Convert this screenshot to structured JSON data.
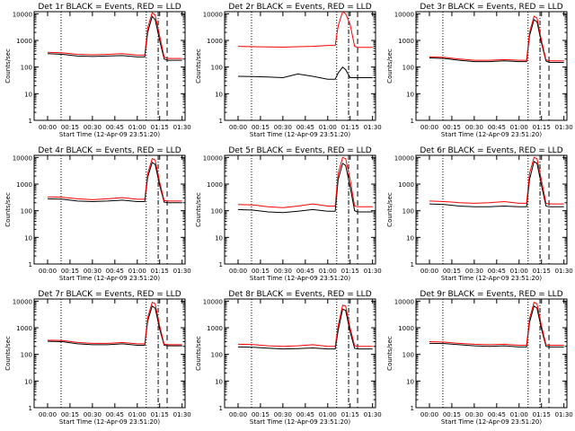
{
  "x_ticks": [
    "00:00",
    "00:15",
    "00:30",
    "00:45",
    "01:00",
    "01:15",
    "01:30"
  ],
  "y_ticks": [
    "1",
    "10",
    "100",
    "1000",
    "10000"
  ],
  "colors": {
    "events": "#000000",
    "lld": "#ff0000"
  },
  "chart_data": [
    {
      "type": "line",
      "title": "Det 1r BLACK = Events, RED = LLD",
      "xlabel": "Start Time (12-Apr-09 23:51:20)",
      "ylabel": "Counts/sec",
      "yscale": "log",
      "ylim": [
        1,
        12000
      ],
      "xlim_minutes": [
        -9,
        92
      ],
      "vlines_dotted_minutes": [
        9,
        66
      ],
      "vlines_dashdot_minutes": [
        74
      ],
      "vlines_dashed_minutes": [
        80
      ],
      "series": [
        {
          "name": "Events",
          "x": [
            0,
            10,
            20,
            30,
            40,
            50,
            60,
            65,
            67,
            70,
            72,
            75,
            78,
            80,
            90
          ],
          "y": [
            320,
            300,
            260,
            250,
            260,
            270,
            240,
            240,
            2000,
            8000,
            6000,
            1000,
            200,
            180,
            180
          ]
        },
        {
          "name": "LLD",
          "x": [
            0,
            10,
            20,
            30,
            40,
            50,
            60,
            65,
            67,
            70,
            72,
            75,
            78,
            80,
            90
          ],
          "y": [
            360,
            340,
            300,
            290,
            300,
            320,
            280,
            280,
            3000,
            11000,
            9000,
            1500,
            240,
            210,
            210
          ]
        }
      ]
    },
    {
      "type": "line",
      "title": "Det 2r BLACK = Events, RED = LLD",
      "xlabel": "Start Time (12-Apr-09 23:51:20)",
      "ylabel": "Counts/sec",
      "yscale": "log",
      "ylim": [
        1,
        12000
      ],
      "xlim_minutes": [
        -9,
        92
      ],
      "vlines_dotted_minutes": [
        9,
        66
      ],
      "vlines_dashdot_minutes": [
        74
      ],
      "vlines_dashed_minutes": [
        80
      ],
      "series": [
        {
          "name": "Events",
          "x": [
            0,
            10,
            20,
            30,
            40,
            50,
            60,
            65,
            67,
            70,
            72,
            75,
            78,
            80,
            90
          ],
          "y": [
            45,
            44,
            42,
            40,
            55,
            45,
            35,
            35,
            60,
            100,
            80,
            40,
            40,
            40,
            40
          ]
        },
        {
          "name": "LLD",
          "x": [
            0,
            10,
            20,
            30,
            40,
            50,
            60,
            65,
            67,
            70,
            72,
            75,
            78,
            80,
            90
          ],
          "y": [
            600,
            580,
            570,
            560,
            580,
            600,
            650,
            650,
            3500,
            12000,
            10000,
            4000,
            600,
            550,
            550
          ]
        }
      ]
    },
    {
      "type": "line",
      "title": "Det 3r BLACK = Events, RED = LLD",
      "xlabel": "Start Time (12-Apr-09 23:51:20)",
      "ylabel": "Counts/sec",
      "yscale": "log",
      "ylim": [
        1,
        12000
      ],
      "xlim_minutes": [
        -9,
        92
      ],
      "vlines_dotted_minutes": [
        9,
        66
      ],
      "vlines_dashdot_minutes": [
        74
      ],
      "vlines_dashed_minutes": [
        80
      ],
      "series": [
        {
          "name": "Events",
          "x": [
            0,
            10,
            20,
            30,
            40,
            50,
            60,
            65,
            67,
            70,
            72,
            75,
            78,
            80,
            90
          ],
          "y": [
            220,
            210,
            180,
            160,
            160,
            170,
            160,
            160,
            1500,
            6000,
            5000,
            800,
            170,
            150,
            150
          ]
        },
        {
          "name": "LLD",
          "x": [
            0,
            10,
            20,
            30,
            40,
            50,
            60,
            65,
            67,
            70,
            72,
            75,
            78,
            80,
            90
          ],
          "y": [
            240,
            230,
            200,
            180,
            180,
            190,
            180,
            180,
            2000,
            8000,
            7000,
            1000,
            190,
            170,
            170
          ]
        }
      ]
    },
    {
      "type": "line",
      "title": "Det 4r BLACK = Events, RED = LLD",
      "xlabel": "Start Time (12-Apr-09 23:51:20)",
      "ylabel": "Counts/sec",
      "yscale": "log",
      "ylim": [
        1,
        12000
      ],
      "xlim_minutes": [
        -9,
        92
      ],
      "vlines_dotted_minutes": [
        9,
        66
      ],
      "vlines_dashdot_minutes": [
        74
      ],
      "vlines_dashed_minutes": [
        80
      ],
      "series": [
        {
          "name": "Events",
          "x": [
            0,
            10,
            20,
            30,
            40,
            50,
            60,
            65,
            67,
            70,
            72,
            75,
            78,
            80,
            90
          ],
          "y": [
            280,
            270,
            230,
            220,
            230,
            250,
            220,
            220,
            1800,
            6500,
            5500,
            900,
            210,
            200,
            200
          ]
        },
        {
          "name": "LLD",
          "x": [
            0,
            10,
            20,
            30,
            40,
            50,
            60,
            65,
            67,
            70,
            72,
            75,
            78,
            80,
            90
          ],
          "y": [
            330,
            320,
            280,
            260,
            280,
            310,
            270,
            270,
            2500,
            9000,
            8000,
            1200,
            240,
            230,
            230
          ]
        }
      ]
    },
    {
      "type": "line",
      "title": "Det 5r BLACK = Events, RED = LLD",
      "xlabel": "Start Time (12-Apr-09 23:51:20)",
      "ylabel": "Counts/sec",
      "yscale": "log",
      "ylim": [
        1,
        12000
      ],
      "xlim_minutes": [
        -9,
        92
      ],
      "vlines_dotted_minutes": [
        9,
        66
      ],
      "vlines_dashdot_minutes": [
        74
      ],
      "vlines_dashed_minutes": [
        80
      ],
      "series": [
        {
          "name": "Events",
          "x": [
            0,
            10,
            20,
            30,
            40,
            50,
            60,
            65,
            67,
            70,
            72,
            75,
            78,
            80,
            90
          ],
          "y": [
            110,
            105,
            90,
            85,
            95,
            110,
            95,
            95,
            1500,
            6000,
            5000,
            800,
            100,
            90,
            90
          ]
        },
        {
          "name": "LLD",
          "x": [
            0,
            10,
            20,
            30,
            40,
            50,
            60,
            65,
            67,
            70,
            72,
            75,
            78,
            80,
            90
          ],
          "y": [
            170,
            165,
            140,
            130,
            150,
            180,
            150,
            150,
            2500,
            10000,
            9000,
            1500,
            150,
            140,
            140
          ]
        }
      ]
    },
    {
      "type": "line",
      "title": "Det 6r BLACK = Events, RED = LLD",
      "xlabel": "Start Time (12-Apr-09 23:51:20)",
      "ylabel": "Counts/sec",
      "yscale": "log",
      "ylim": [
        1,
        12000
      ],
      "xlim_minutes": [
        -9,
        92
      ],
      "vlines_dotted_minutes": [
        9,
        66
      ],
      "vlines_dashdot_minutes": [
        74
      ],
      "vlines_dashed_minutes": [
        80
      ],
      "series": [
        {
          "name": "Events",
          "x": [
            0,
            10,
            20,
            30,
            40,
            50,
            60,
            65,
            67,
            70,
            72,
            75,
            78,
            80,
            90
          ],
          "y": [
            180,
            170,
            150,
            140,
            140,
            150,
            140,
            140,
            1500,
            7000,
            6000,
            900,
            150,
            140,
            140
          ]
        },
        {
          "name": "LLD",
          "x": [
            0,
            10,
            20,
            30,
            40,
            50,
            60,
            65,
            67,
            70,
            72,
            75,
            78,
            80,
            90
          ],
          "y": [
            230,
            220,
            200,
            190,
            200,
            220,
            190,
            190,
            2500,
            10000,
            9000,
            1400,
            190,
            180,
            180
          ]
        }
      ]
    },
    {
      "type": "line",
      "title": "Det 7r BLACK = Events, RED = LLD",
      "xlabel": "Start Time (12-Apr-09 23:51:20)",
      "ylabel": "Counts/sec",
      "yscale": "log",
      "ylim": [
        1,
        12000
      ],
      "xlim_minutes": [
        -9,
        92
      ],
      "vlines_dotted_minutes": [
        9,
        66
      ],
      "vlines_dashdot_minutes": [
        74
      ],
      "vlines_dashed_minutes": [
        80
      ],
      "series": [
        {
          "name": "Events",
          "x": [
            0,
            10,
            20,
            30,
            40,
            50,
            60,
            65,
            67,
            70,
            72,
            75,
            78,
            80,
            90
          ],
          "y": [
            310,
            300,
            250,
            230,
            230,
            250,
            220,
            220,
            1800,
            6500,
            5500,
            900,
            220,
            210,
            210
          ]
        },
        {
          "name": "LLD",
          "x": [
            0,
            10,
            20,
            30,
            40,
            50,
            60,
            65,
            67,
            70,
            72,
            75,
            78,
            80,
            90
          ],
          "y": [
            340,
            330,
            280,
            260,
            260,
            280,
            250,
            250,
            2400,
            9000,
            8000,
            1200,
            240,
            230,
            230
          ]
        }
      ]
    },
    {
      "type": "line",
      "title": "Det 8r BLACK = Events, RED = LLD",
      "xlabel": "Start Time (12-Apr-09 23:51:20)",
      "ylabel": "Counts/sec",
      "yscale": "log",
      "ylim": [
        1,
        12000
      ],
      "xlim_minutes": [
        -9,
        92
      ],
      "vlines_dotted_minutes": [
        9,
        66
      ],
      "vlines_dashdot_minutes": [
        74
      ],
      "vlines_dashed_minutes": [
        80
      ],
      "series": [
        {
          "name": "Events",
          "x": [
            0,
            10,
            20,
            30,
            40,
            50,
            60,
            65,
            67,
            70,
            72,
            75,
            78,
            80,
            90
          ],
          "y": [
            190,
            185,
            170,
            160,
            165,
            175,
            160,
            160,
            800,
            5000,
            4500,
            700,
            170,
            160,
            160
          ]
        },
        {
          "name": "LLD",
          "x": [
            0,
            10,
            20,
            30,
            40,
            50,
            60,
            65,
            67,
            70,
            72,
            75,
            78,
            80,
            90
          ],
          "y": [
            240,
            235,
            210,
            200,
            210,
            230,
            200,
            200,
            1200,
            7000,
            6500,
            1000,
            210,
            200,
            200
          ]
        }
      ]
    },
    {
      "type": "line",
      "title": "Det 9r BLACK = Events, RED = LLD",
      "xlabel": "Start Time (12-Apr-09 23:51:20)",
      "ylabel": "Counts/sec",
      "yscale": "log",
      "ylim": [
        1,
        12000
      ],
      "xlim_minutes": [
        -9,
        92
      ],
      "vlines_dotted_minutes": [
        9,
        66
      ],
      "vlines_dashdot_minutes": [
        74
      ],
      "vlines_dashed_minutes": [
        80
      ],
      "series": [
        {
          "name": "Events",
          "x": [
            0,
            10,
            20,
            30,
            40,
            50,
            60,
            65,
            67,
            70,
            72,
            75,
            78,
            80,
            90
          ],
          "y": [
            260,
            255,
            230,
            210,
            200,
            210,
            190,
            190,
            1600,
            6500,
            5500,
            900,
            200,
            190,
            190
          ]
        },
        {
          "name": "LLD",
          "x": [
            0,
            10,
            20,
            30,
            40,
            50,
            60,
            65,
            67,
            70,
            72,
            75,
            78,
            80,
            90
          ],
          "y": [
            300,
            290,
            260,
            240,
            230,
            240,
            220,
            220,
            2200,
            9000,
            8000,
            1200,
            230,
            220,
            220
          ]
        }
      ]
    }
  ]
}
